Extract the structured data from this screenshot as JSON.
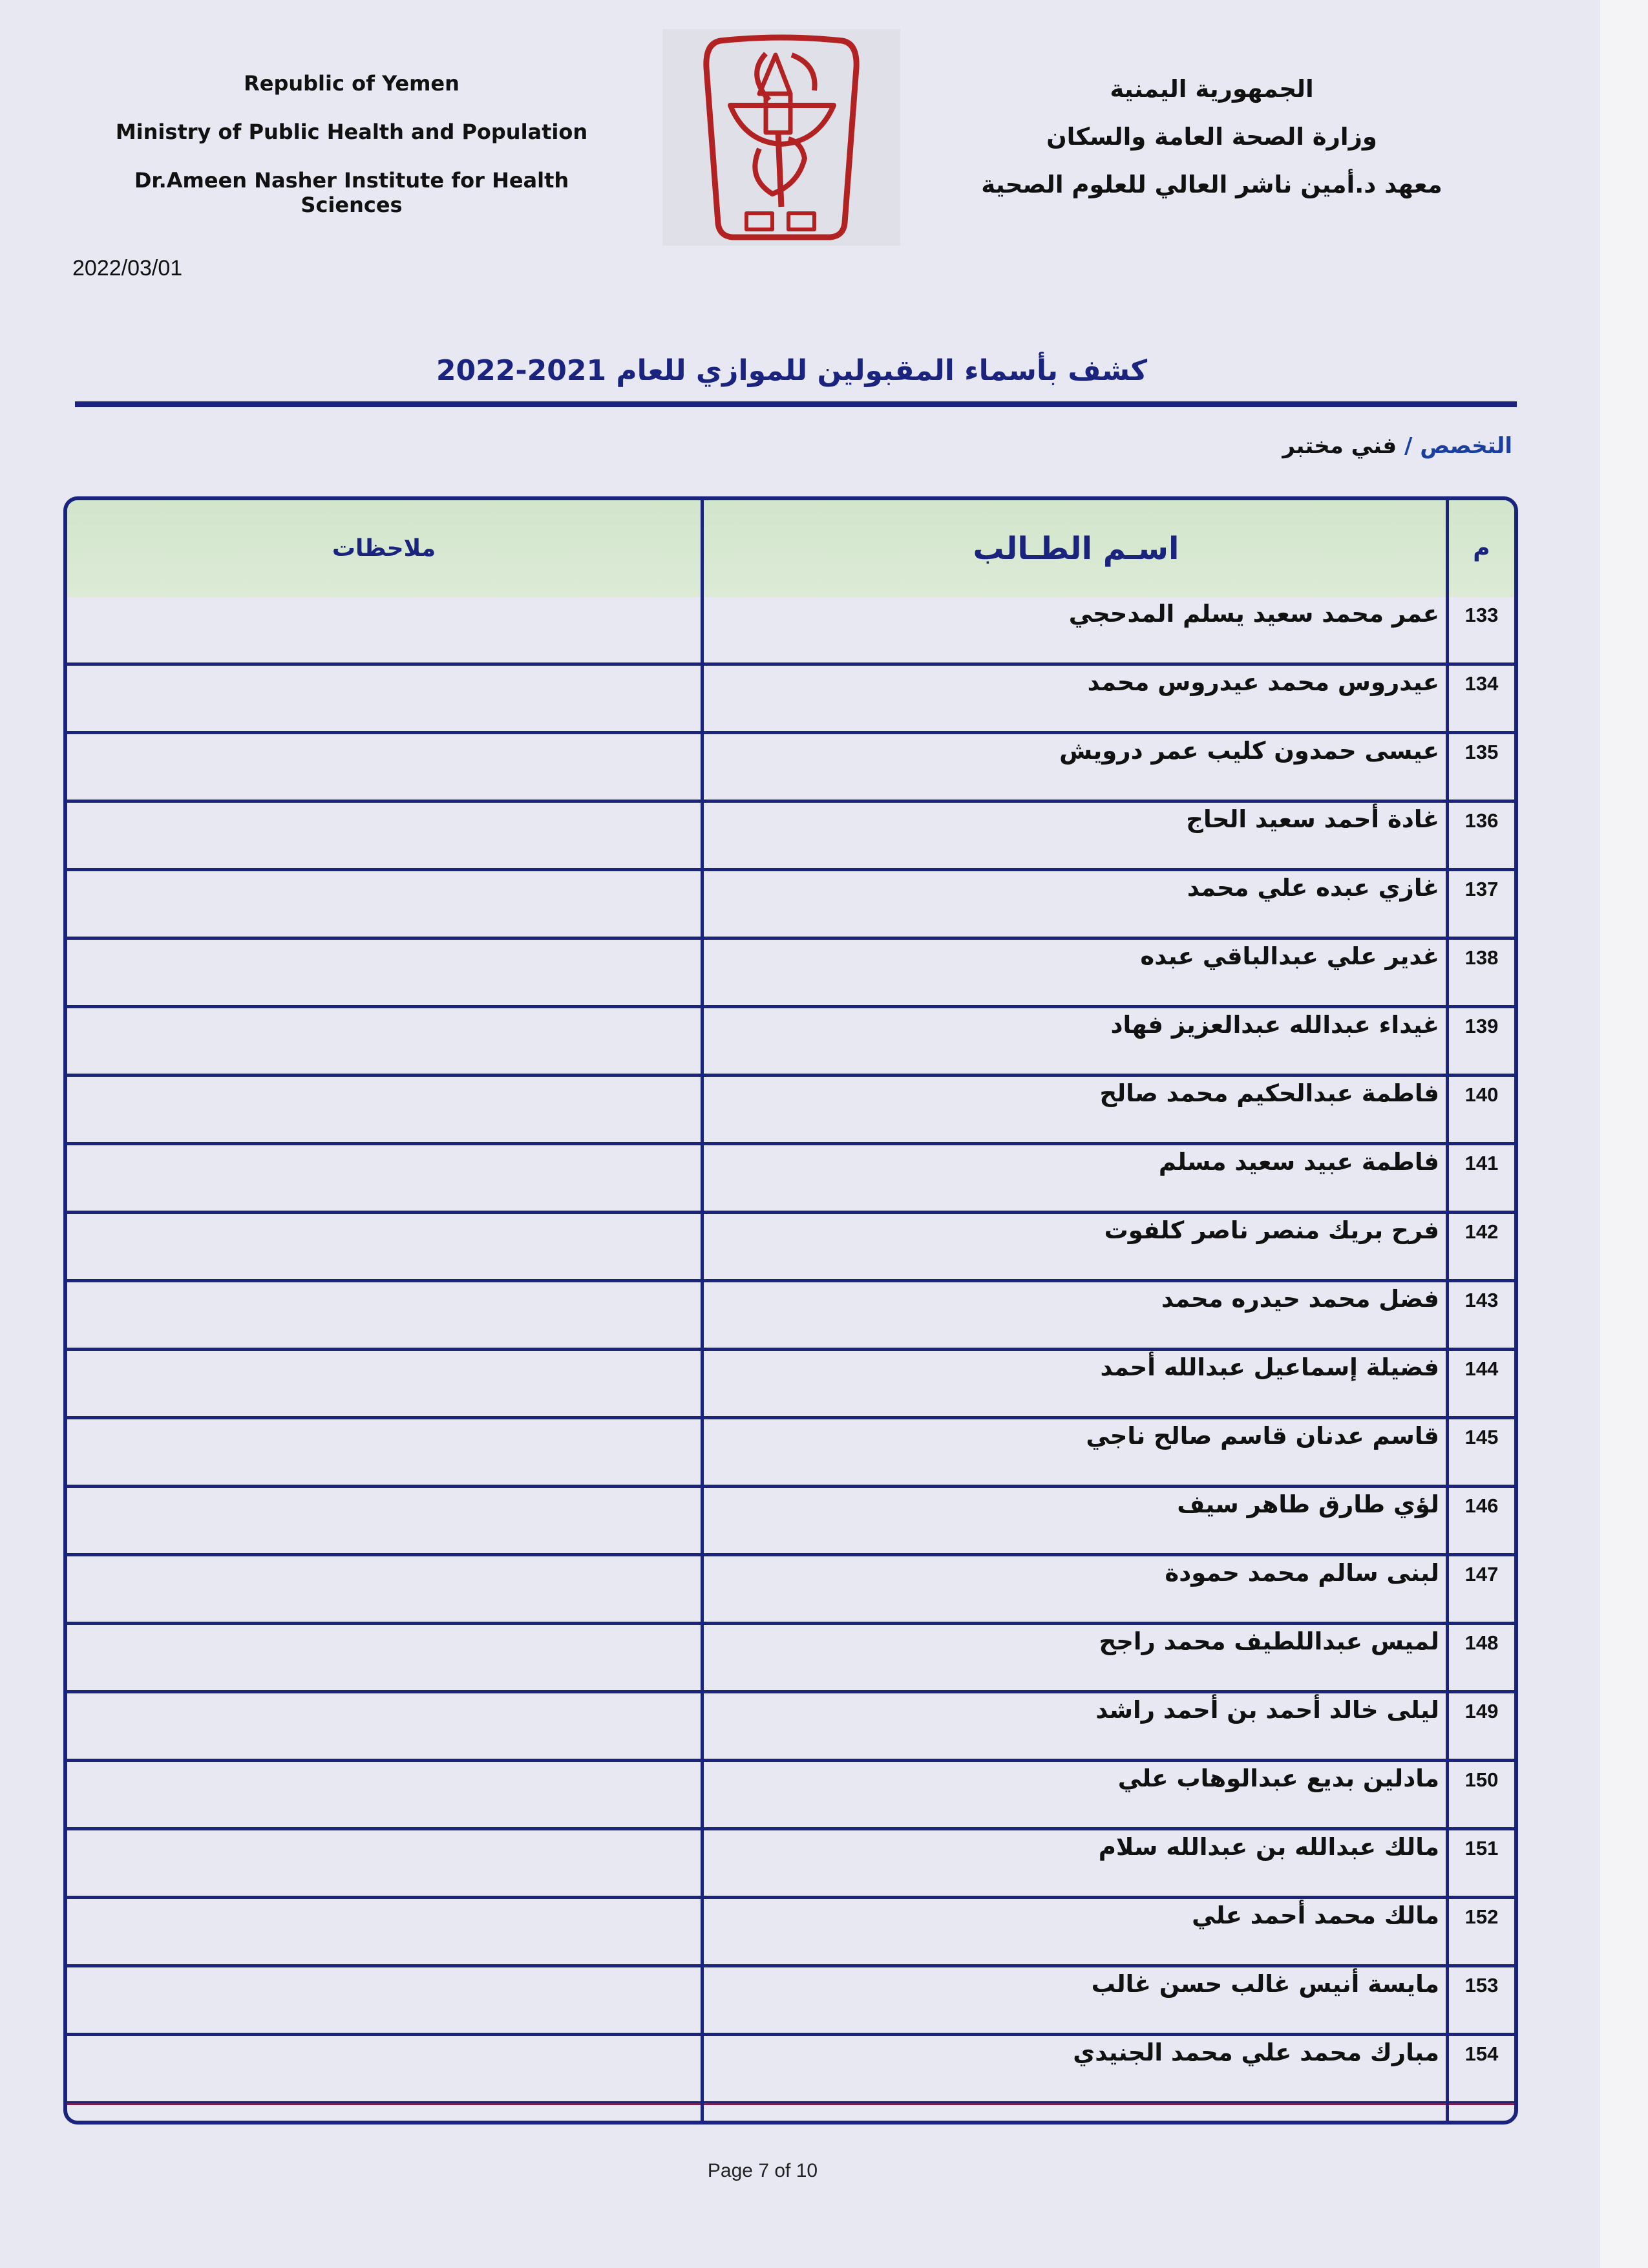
{
  "header": {
    "english": [
      "Republic of Yemen",
      "Ministry of Public Health and Population",
      "Dr.Ameen Nasher Institute for Health Sciences"
    ],
    "arabic": [
      "الجمهورية اليمنية",
      "وزارة الصحة العامة والسكان",
      "معهد د.أمين ناشر العالي للعلوم الصحية"
    ],
    "logo_color": "#b22222"
  },
  "date": "2022/03/01",
  "title": "كشف بأسماء المقبولين للموازي للعام 2021-2022",
  "specialty": {
    "label": "التخصص /",
    "value": "فني مختبر"
  },
  "table": {
    "columns": {
      "number": "م",
      "name": "اسـم الطـالب",
      "notes": "ملاحظات"
    },
    "header_color": "#d5e7cf",
    "border_color": "#1a237e",
    "rows": [
      {
        "number": "133",
        "name": "عمر محمد سعيد يسلم المدحجي",
        "notes": ""
      },
      {
        "number": "134",
        "name": "عيدروس محمد عيدروس محمد",
        "notes": ""
      },
      {
        "number": "135",
        "name": "عيسى حمدون كليب عمر درويش",
        "notes": ""
      },
      {
        "number": "136",
        "name": "غادة أحمد سعيد الحاج",
        "notes": ""
      },
      {
        "number": "137",
        "name": "غازي عبده علي محمد",
        "notes": ""
      },
      {
        "number": "138",
        "name": "غدير علي عبدالباقي عبده",
        "notes": ""
      },
      {
        "number": "139",
        "name": "غيداء عبدالله عبدالعزيز فهاد",
        "notes": ""
      },
      {
        "number": "140",
        "name": "فاطمة عبدالحكيم محمد صالح",
        "notes": ""
      },
      {
        "number": "141",
        "name": "فاطمة عبيد سعيد مسلم",
        "notes": ""
      },
      {
        "number": "142",
        "name": "فرح بريك منصر ناصر كلفوت",
        "notes": ""
      },
      {
        "number": "143",
        "name": "فضل محمد حيدره محمد",
        "notes": ""
      },
      {
        "number": "144",
        "name": "فضيلة إسماعيل عبدالله أحمد",
        "notes": ""
      },
      {
        "number": "145",
        "name": "قاسم عدنان قاسم صالح ناجي",
        "notes": ""
      },
      {
        "number": "146",
        "name": "لؤي طارق طاهر سيف",
        "notes": ""
      },
      {
        "number": "147",
        "name": "لبنى سالم محمد حمودة",
        "notes": ""
      },
      {
        "number": "148",
        "name": "لميس عبداللطيف محمد راجح",
        "notes": ""
      },
      {
        "number": "149",
        "name": "ليلى خالد أحمد بن أحمد راشد",
        "notes": ""
      },
      {
        "number": "150",
        "name": "مادلين بديع عبدالوهاب علي",
        "notes": ""
      },
      {
        "number": "151",
        "name": "مالك عبدالله بن عبدالله سلام",
        "notes": ""
      },
      {
        "number": "152",
        "name": "مالك محمد أحمد علي",
        "notes": ""
      },
      {
        "number": "153",
        "name": "مايسة أنيس غالب حسن غالب",
        "notes": ""
      },
      {
        "number": "154",
        "name": "مبارك محمد علي محمد الجنيدي",
        "notes": ""
      }
    ]
  },
  "footer": {
    "page": "Page 7 of 10"
  }
}
